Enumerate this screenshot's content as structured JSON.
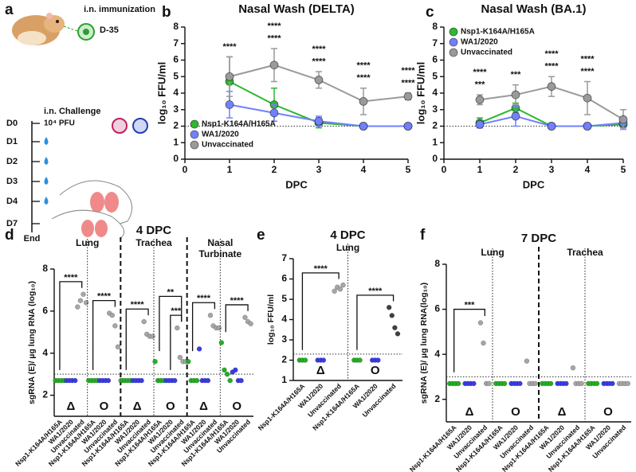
{
  "diagram": {
    "label": "a",
    "immunization": "i.n. immunization",
    "day": "D-35",
    "challenge": "i.n. Challenge",
    "dose": "10⁴ PFU",
    "days": [
      "D0",
      "D1",
      "D2",
      "D3",
      "D4",
      "D7"
    ],
    "end": "End"
  },
  "chart_data": [
    {
      "label": "b",
      "type": "line",
      "title": "Nasal Wash (DELTA)",
      "x_label": "DPC",
      "y_label": "log₁₀ FFU/ml",
      "x": [
        1,
        2,
        3,
        4,
        5
      ],
      "xlim": [
        0,
        5
      ],
      "xticks": [
        0,
        1,
        2,
        3,
        4,
        5
      ],
      "ylim": [
        0,
        8
      ],
      "yticks": [
        0,
        1,
        2,
        3,
        4,
        5,
        6,
        7,
        8
      ],
      "limit_of_detection": 2,
      "legend": "lower left",
      "series": [
        {
          "name": "Nsp1-K164A/H165A",
          "color": "#2db82d",
          "significance_color": "#1fa51f",
          "values": [
            4.7,
            3.3,
            2.2,
            2.0,
            2.0
          ],
          "errors": [
            1.5,
            1.0,
            0.3,
            0,
            0
          ],
          "significance": [
            null,
            "****",
            "****",
            "****",
            "****"
          ]
        },
        {
          "name": "WA1/2020",
          "color": "#7280ff",
          "significance_color": "#2323d0",
          "values": [
            3.3,
            2.8,
            2.3,
            2.0,
            2.0
          ],
          "errors": [
            0.8,
            0.5,
            0.3,
            0,
            0
          ],
          "significance": [
            "****",
            "****",
            "****",
            "****",
            "****"
          ]
        },
        {
          "name": "Unvaccinated",
          "color": "#9a9a9a",
          "significance_color": "#555555",
          "values": [
            5.0,
            5.7,
            4.8,
            3.5,
            3.8
          ],
          "errors": [
            1.2,
            1.0,
            0.5,
            0.8,
            0.2
          ],
          "significance": [
            null,
            null,
            null,
            null,
            null
          ]
        }
      ]
    },
    {
      "label": "c",
      "type": "line",
      "title": "Nasal Wash (BA.1)",
      "x_label": "DPC",
      "y_label": "log₁₀ FFU/ml",
      "x": [
        1,
        2,
        3,
        4,
        5
      ],
      "xlim": [
        0,
        5
      ],
      "xticks": [
        0,
        1,
        2,
        3,
        4,
        5
      ],
      "ylim": [
        0,
        8
      ],
      "yticks": [
        0,
        1,
        2,
        3,
        4,
        5,
        6,
        7,
        8
      ],
      "limit_of_detection": 2,
      "legend": "upper left",
      "series": [
        {
          "name": "Nsp1-K164A/H165A",
          "color": "#2db82d",
          "significance_color": "#1fa51f",
          "values": [
            2.2,
            3.1,
            2.0,
            2.0,
            2.1
          ],
          "errors": [
            0.3,
            0.3,
            0,
            0,
            0.2
          ],
          "significance": [
            "****",
            "***",
            "****",
            "****",
            null
          ]
        },
        {
          "name": "WA1/2020",
          "color": "#7280ff",
          "significance_color": "#2323d0",
          "values": [
            2.1,
            2.6,
            2.0,
            2.0,
            2.2
          ],
          "errors": [
            0.2,
            0.6,
            0,
            0,
            0.3
          ],
          "significance": [
            "***",
            null,
            "****",
            "****",
            null
          ]
        },
        {
          "name": "Unvaccinated",
          "color": "#9a9a9a",
          "significance_color": "#555555",
          "values": [
            3.6,
            3.9,
            4.4,
            3.7,
            2.4
          ],
          "errors": [
            0.3,
            0.6,
            0.6,
            1.0,
            0.6
          ],
          "significance": [
            null,
            null,
            null,
            null,
            null
          ]
        }
      ]
    },
    {
      "label": "d",
      "type": "dot",
      "title": "4 DPC",
      "y_label": "sgRNA (E)/ µg lung RNA (log₁₀)",
      "ylim": [
        1,
        8
      ],
      "yticks": [
        2,
        4,
        6,
        8
      ],
      "limit_of_detection": 3,
      "groups": [
        {
          "label": "Lung",
          "subgroups": [
            {
              "label": "Δ",
              "color": "#4da6ef",
              "categories": [
                "Nsp1-K164A/H165A",
                "WA1/2020",
                "Unvaccinated"
              ],
              "colors": [
                "#22b022",
                "#3b3be8",
                "#a6a6a6"
              ],
              "values": [
                [
                  2.7,
                  2.7,
                  2.7,
                  2.7
                ],
                [
                  2.7,
                  2.7,
                  2.7,
                  2.7
                ],
                [
                  6.2,
                  6.5,
                  6.8,
                  6.4
                ]
              ],
              "significance": [
                "****",
                null,
                null
              ]
            },
            {
              "label": "O",
              "color": "#e23fd8",
              "categories": [
                "Nsp1-K164A/H165A",
                "WA1/2020",
                "Unvaccinated"
              ],
              "colors": [
                "#22b022",
                "#3b3be8",
                "#a6a6a6"
              ],
              "values": [
                [
                  2.7,
                  2.7,
                  2.7,
                  2.7
                ],
                [
                  2.7,
                  2.7,
                  2.7,
                  2.7
                ],
                [
                  5.9,
                  5.8,
                  5.3,
                  4.3,
                  2.7
                ]
              ],
              "significance": [
                "****",
                null,
                null
              ]
            }
          ]
        },
        {
          "label": "Trachea",
          "subgroups": [
            {
              "label": "Δ",
              "color": "#4da6ef",
              "categories": [
                "Nsp1-K164A/H165A",
                "WA1/2020",
                "Unvaccinated"
              ],
              "colors": [
                "#22b022",
                "#3b3be8",
                "#a6a6a6"
              ],
              "values": [
                [
                  2.7,
                  2.7,
                  2.7,
                  2.7
                ],
                [
                  2.7,
                  2.7,
                  2.7,
                  2.7
                ],
                [
                  5.5,
                  4.9,
                  4.8,
                  4.8
                ]
              ],
              "significance": [
                "****",
                null,
                null
              ]
            },
            {
              "label": "O",
              "color": "#e23fd8",
              "categories": [
                "Nsp1-K164A/H165A",
                "WA1/2020",
                "Unvaccinated"
              ],
              "colors": [
                "#22b022",
                "#3b3be8",
                "#a6a6a6"
              ],
              "values": [
                [
                  3.6,
                  2.7,
                  2.7,
                  2.7
                ],
                [
                  2.7,
                  2.7,
                  2.7,
                  2.7
                ],
                [
                  5.2,
                  3.8,
                  3.6,
                  3.6
                ]
              ],
              "significance": [
                "**",
                "***",
                null
              ]
            }
          ]
        },
        {
          "label": "Nasal Turbinate",
          "subgroups": [
            {
              "label": "Δ",
              "color": "#4da6ef",
              "categories": [
                "Nsp1-K164A/H165A",
                "WA1/2020",
                "Unvaccinated"
              ],
              "colors": [
                "#22b022",
                "#3b3be8",
                "#a6a6a6"
              ],
              "values": [
                [
                  3.6,
                  2.7,
                  2.7,
                  2.7
                ],
                [
                  4.2,
                  2.7,
                  2.7,
                  2.7
                ],
                [
                  5.8,
                  5.3,
                  5.2,
                  5.2
                ]
              ],
              "significance": [
                "****",
                null,
                null
              ]
            },
            {
              "label": "O",
              "color": "#e23fd8",
              "categories": [
                "Nsp1-K164A/H165A",
                "WA1/2020",
                "Unvaccinated"
              ],
              "colors": [
                "#22b022",
                "#3b3be8",
                "#a6a6a6"
              ],
              "values": [
                [
                  4.5,
                  3.2,
                  3.0,
                  2.7
                ],
                [
                  3.1,
                  3.2,
                  2.7,
                  2.7
                ],
                [
                  5.7,
                  5.5,
                  5.4
                ]
              ],
              "significance": [
                "****",
                null,
                null
              ]
            }
          ]
        }
      ]
    },
    {
      "label": "e",
      "type": "dot",
      "title": "4 DPC",
      "y_label": "log₁₀ FFU/ml",
      "ylim": [
        1,
        7
      ],
      "yticks": [
        1,
        2,
        3,
        4,
        5,
        6,
        7
      ],
      "limit_of_detection": 2.3,
      "groups": [
        {
          "label": "Lung",
          "subgroups": [
            {
              "label": "Δ",
              "color": "#4da6ef",
              "categories": [
                "Nsp1-K164A/H165A",
                "WA1/2020",
                "Unvaccinated"
              ],
              "colors": [
                "#22b022",
                "#3b3be8",
                "#a6a6a6"
              ],
              "values": [
                [
                  2,
                  2,
                  2
                ],
                [
                  2,
                  2,
                  2
                ],
                [
                  5.4,
                  5.6,
                  5.5,
                  5.7
                ]
              ],
              "significance": [
                "****",
                null,
                null
              ]
            },
            {
              "label": "O",
              "color": "#e23fd8",
              "categories": [
                "Nsp1-K164A/H165A",
                "WA1/2020",
                "Unvaccinated"
              ],
              "colors": [
                "#22b022",
                "#3b3be8",
                "#404040"
              ],
              "values": [
                [
                  2,
                  2,
                  2
                ],
                [
                  2,
                  2,
                  2
                ],
                [
                  4.6,
                  4.2,
                  3.6,
                  3.3
                ]
              ],
              "significance": [
                "****",
                null,
                null
              ]
            }
          ]
        }
      ]
    },
    {
      "label": "f",
      "type": "dot",
      "title": "7 DPC",
      "y_label": "sgRNA (E)/ µg lung RNA(log₁₀)",
      "ylim": [
        1,
        8
      ],
      "yticks": [
        2,
        4,
        6,
        8
      ],
      "limit_of_detection": 3,
      "groups": [
        {
          "label": "Lung",
          "subgroups": [
            {
              "label": "Δ",
              "color": "#4da6ef",
              "categories": [
                "Nsp1-K164A/H165A",
                "WA1/2020",
                "Unvaccinated"
              ],
              "colors": [
                "#22b022",
                "#3b3be8",
                "#a6a6a6"
              ],
              "values": [
                [
                  2.7,
                  2.7,
                  2.7,
                  2.7
                ],
                [
                  2.7,
                  2.7,
                  2.7,
                  2.7
                ],
                [
                  5.4,
                  4.5,
                  2.7,
                  2.7
                ]
              ],
              "significance": [
                "***",
                null,
                null
              ]
            },
            {
              "label": "O",
              "color": "#e23fd8",
              "categories": [
                "Nsp1-K164A/H165A",
                "WA1/2020",
                "Unvaccinated"
              ],
              "colors": [
                "#22b022",
                "#3b3be8",
                "#a6a6a6"
              ],
              "values": [
                [
                  2.7,
                  2.7,
                  2.7,
                  2.7
                ],
                [
                  2.7,
                  2.7,
                  2.7,
                  2.7
                ],
                [
                  3.7,
                  2.7,
                  2.7,
                  2.7
                ]
              ],
              "significance": [
                null,
                null,
                null
              ]
            }
          ]
        },
        {
          "label": "Trachea",
          "subgroups": [
            {
              "label": "Δ",
              "color": "#4da6ef",
              "categories": [
                "Nsp1-K164A/H165A",
                "WA1/2020",
                "Unvaccinated"
              ],
              "colors": [
                "#22b022",
                "#3b3be8",
                "#a6a6a6"
              ],
              "values": [
                [
                  2.7,
                  2.7,
                  2.7,
                  2.7
                ],
                [
                  2.7,
                  2.7,
                  2.7,
                  2.7
                ],
                [
                  3.4,
                  2.7,
                  2.7,
                  2.7
                ]
              ],
              "significance": [
                null,
                null,
                null
              ]
            },
            {
              "label": "O",
              "color": "#e23fd8",
              "categories": [
                "Nsp1-K164A/H165A",
                "WA1/2020",
                "Unvaccinated"
              ],
              "colors": [
                "#22b022",
                "#3b3be8",
                "#a6a6a6"
              ],
              "values": [
                [
                  2.7,
                  2.7,
                  2.7,
                  2.7
                ],
                [
                  2.7,
                  2.7,
                  2.7,
                  2.7
                ],
                [
                  2.7,
                  2.7,
                  2.7,
                  2.7
                ]
              ],
              "significance": [
                null,
                null,
                null
              ]
            }
          ]
        }
      ]
    }
  ]
}
